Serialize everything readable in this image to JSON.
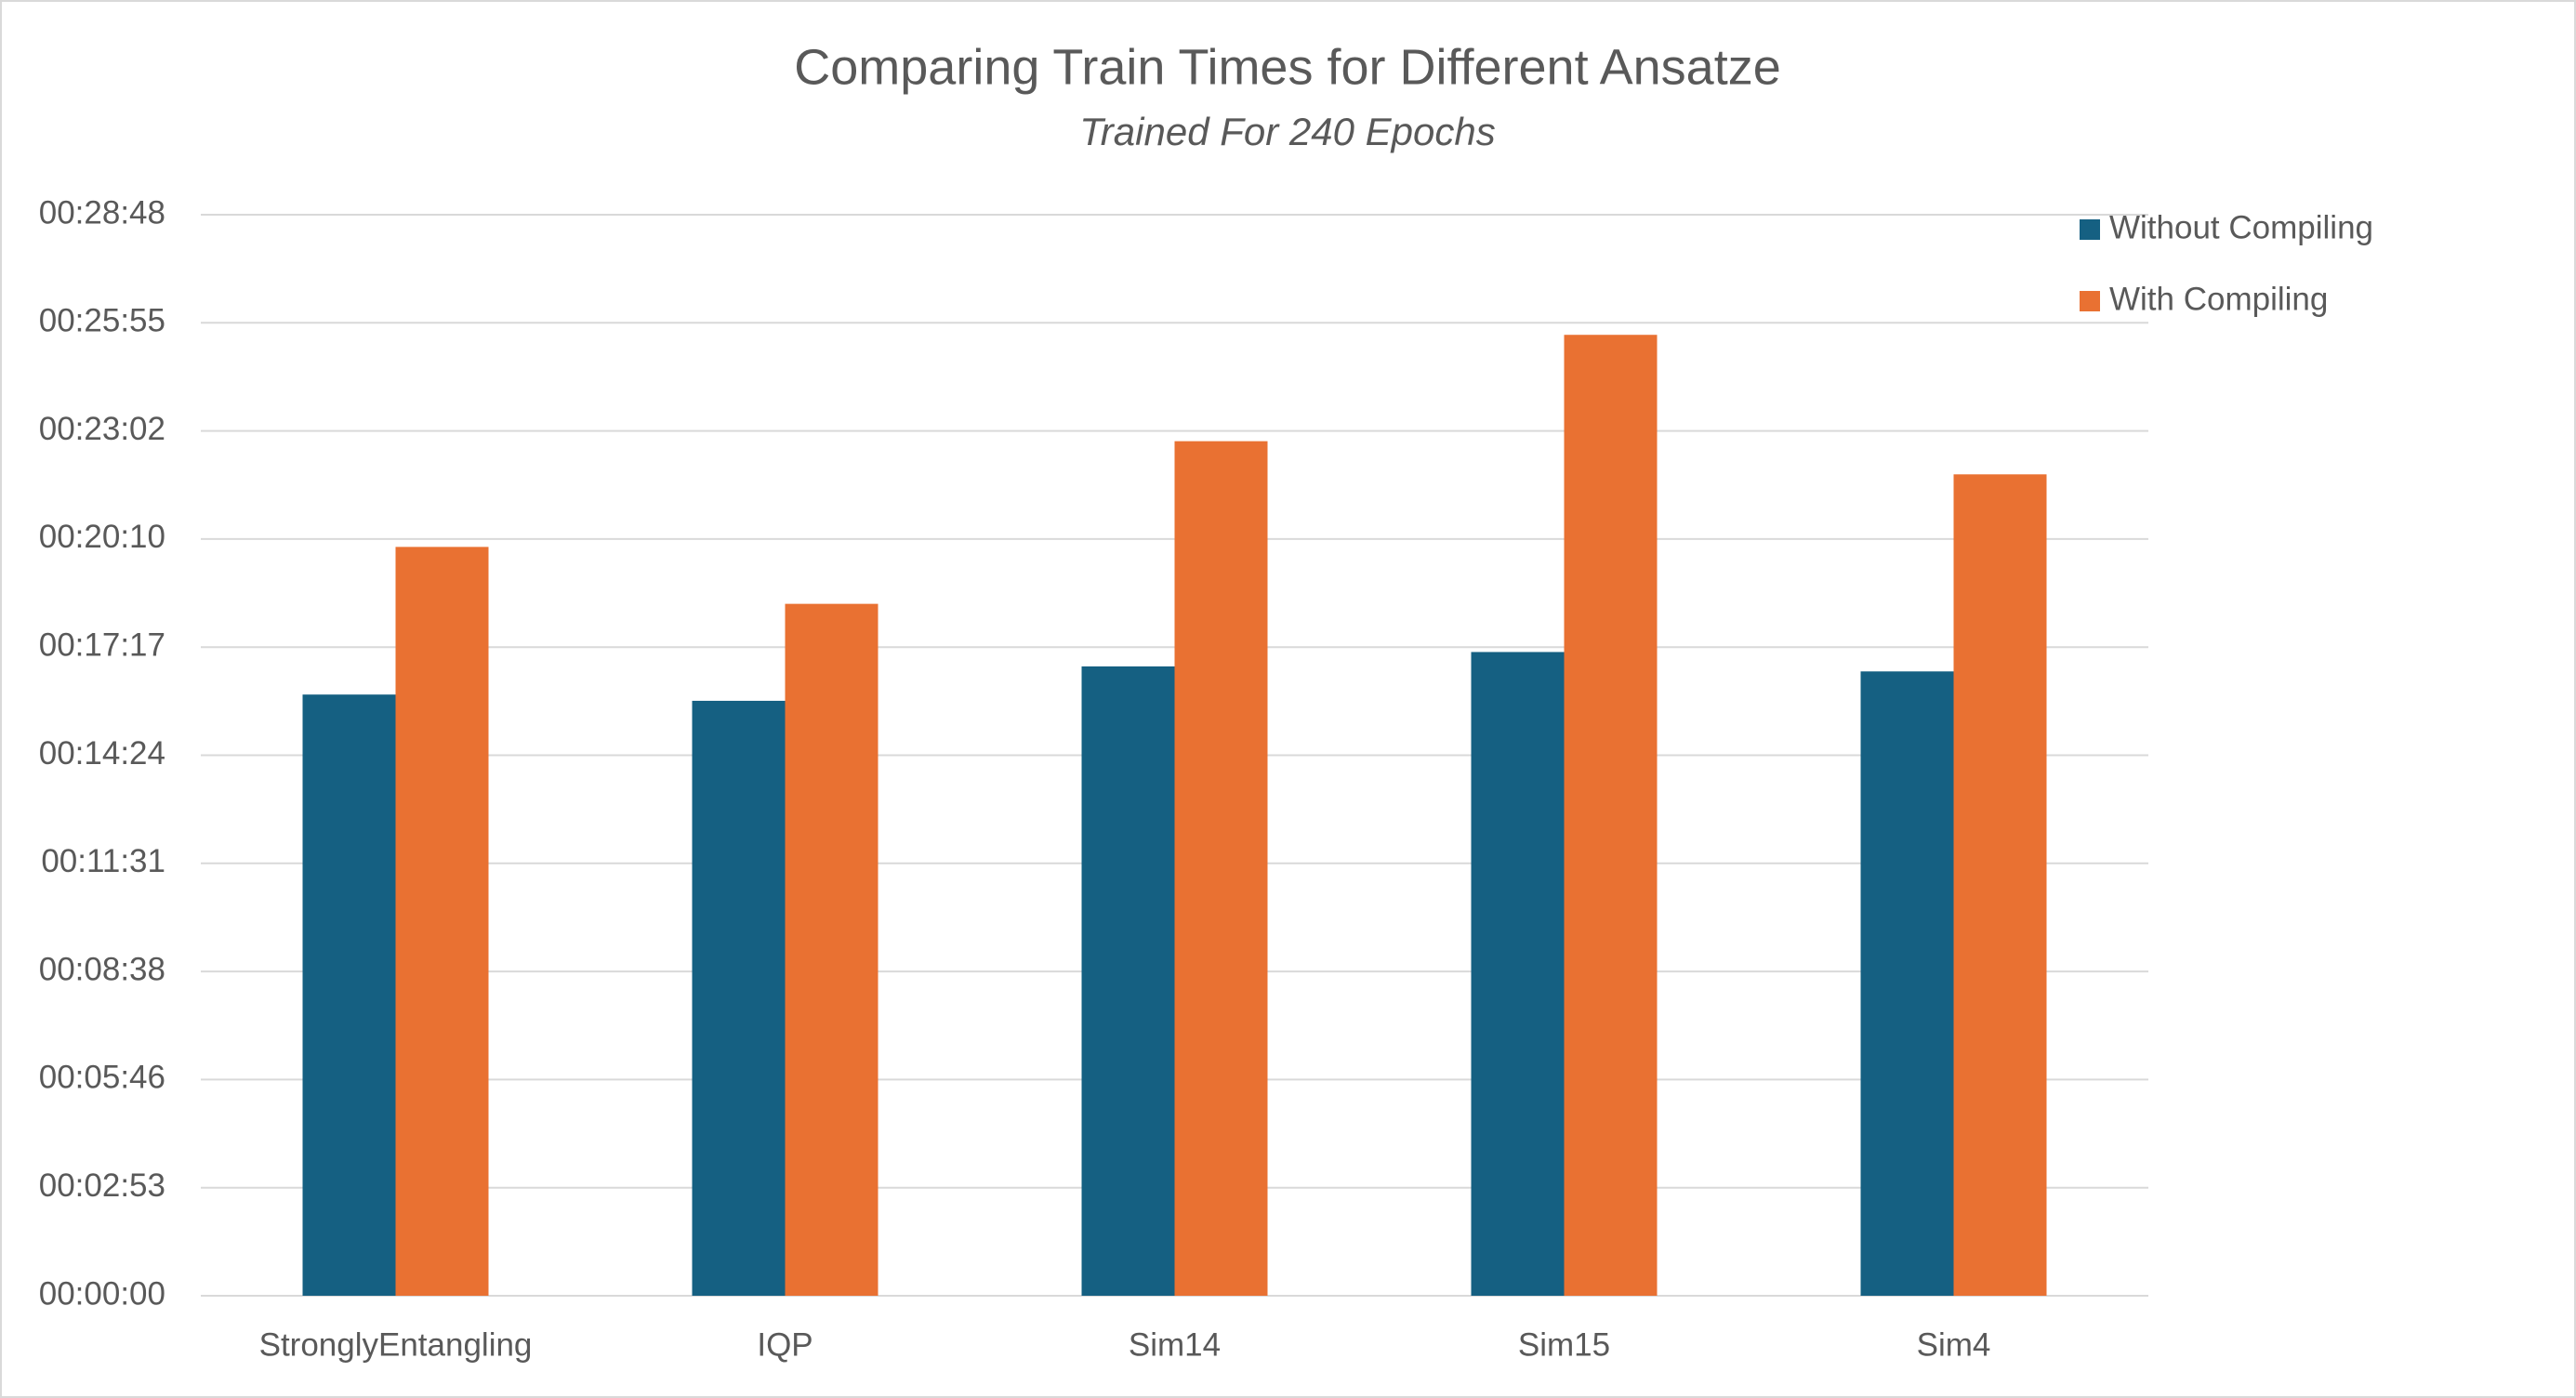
{
  "chart_data": {
    "type": "bar",
    "title": "Comparing Train Times for Different Ansatze",
    "subtitle": "Trained For 240 Epochs",
    "categories": [
      "StronglyEntangling",
      "IQP",
      "Sim14",
      "Sim15",
      "Sim4"
    ],
    "series": [
      {
        "name": "Without Compiling",
        "color": "#156082",
        "values": [
          961,
          951,
          1006,
          1029,
          998
        ]
      },
      {
        "name": "With Compiling",
        "color": "#e97132",
        "values": [
          1197,
          1106,
          1366,
          1536,
          1313
        ]
      }
    ],
    "ylim": [
      0,
      1728
    ],
    "yticks": [
      {
        "value": 0,
        "label": "00:00:00"
      },
      {
        "value": 172.8,
        "label": "00:02:53"
      },
      {
        "value": 345.6,
        "label": "00:05:46"
      },
      {
        "value": 518.4,
        "label": "00:08:38"
      },
      {
        "value": 691.2,
        "label": "00:11:31"
      },
      {
        "value": 864,
        "label": "00:14:24"
      },
      {
        "value": 1036.8,
        "label": "00:17:17"
      },
      {
        "value": 1209.6,
        "label": "00:20:10"
      },
      {
        "value": 1382.4,
        "label": "00:23:02"
      },
      {
        "value": 1555.2,
        "label": "00:25:55"
      },
      {
        "value": 1728,
        "label": "00:28:48"
      }
    ],
    "grid": true,
    "legend": "top-right"
  }
}
